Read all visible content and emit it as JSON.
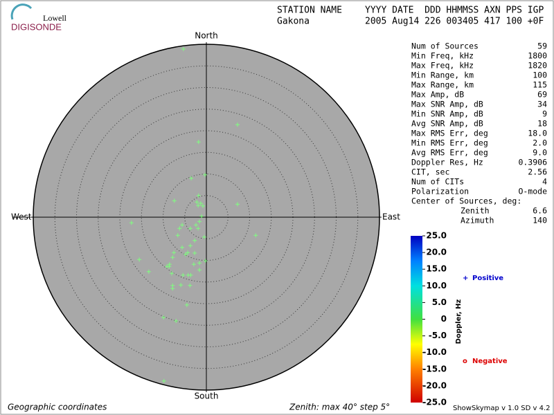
{
  "logo": {
    "line1": "Lowell",
    "line2": "DIGISONDE"
  },
  "header": {
    "row1_left": "STATION NAME",
    "row1_right": "YYYY DATE  DDD HHMMSS AXN PPS IGP",
    "row2_left": "Gakona",
    "row2_right": "2005 Aug14 226 003405 417 100 +0F"
  },
  "info": [
    [
      "Num of Sources",
      "59"
    ],
    [
      "Min Freq, kHz",
      "1800"
    ],
    [
      "Max Freq, kHz",
      "1820"
    ],
    [
      "Min Range, km",
      "100"
    ],
    [
      "Max Range, km",
      "115"
    ],
    [
      "Max Amp, dB",
      "69"
    ],
    [
      "Max SNR Amp, dB",
      "34"
    ],
    [
      "Min SNR Amp, dB",
      "9"
    ],
    [
      "Avg SNR Amp, dB",
      "18"
    ],
    [
      "Max RMS Err, deg",
      "18.0"
    ],
    [
      "Min RMS Err, deg",
      "2.0"
    ],
    [
      "Avg RMS Err, deg",
      "9.0"
    ],
    [
      "Doppler Res, Hz",
      "0.3906"
    ],
    [
      "CIT, sec",
      "2.56"
    ],
    [
      "Num of CITs",
      "4"
    ],
    [
      "Polarization",
      "O-mode"
    ],
    [
      "Center of Sources, deg:"
    ],
    [
      "Zenith",
      "6.6"
    ],
    [
      "Azimuth",
      "140"
    ]
  ],
  "footer": {
    "left": "Geographic coordinates",
    "center": "Zenith: max 40°  step 5°",
    "right": "ShowSkymap v 1.0  SD v 4.2"
  },
  "chart_data": {
    "type": "skymap",
    "directions": {
      "north": "North",
      "south": "South",
      "east": "East",
      "west": "West"
    },
    "xlim": [
      -40,
      40
    ],
    "ylim": [
      -40,
      40
    ],
    "rings": [
      5,
      10,
      15,
      20,
      25,
      30,
      35
    ],
    "series": [
      {
        "name": "Positive",
        "color": "#7fff7f",
        "marker": "+",
        "x": [
          -5.3,
          7.2,
          -1.8,
          -0.3,
          -3.5,
          -1.8,
          -7.4,
          -2.2,
          -1.3,
          -1.9,
          -0.8,
          7.2,
          -1.1,
          -17.3,
          -1.6,
          -5.6,
          -2.4,
          -6.2,
          -3.7,
          -1.9,
          -6.6,
          -0.5,
          11.4,
          -2.7,
          -5.6,
          -3.7,
          -0.2,
          -7.5,
          -4.3,
          -2.7,
          -7.8,
          -15.5,
          -8.5,
          -4.8,
          -9.1,
          -2.9,
          -1.6,
          -13.3,
          -8.0,
          -5.4,
          -4.2,
          -3.6,
          -1.6,
          -7.8,
          -5.9,
          -7.8,
          -3.8,
          -8.6,
          -4.5,
          -9.9,
          -7.0,
          -9.8
        ],
        "y": [
          38.9,
          21.4,
          17.4,
          9.8,
          9.0,
          5.0,
          3.8,
          3.5,
          3.2,
          2.7,
          2.6,
          3.0,
          0.2,
          -1.3,
          -1.0,
          -1.8,
          -1.8,
          -2.6,
          -2.6,
          -2.6,
          -4.2,
          -4.6,
          -4.2,
          -5.4,
          -7.0,
          -6.6,
          -10.1,
          -8.2,
          -8.2,
          -8.3,
          -9.3,
          -9.8,
          -10.9,
          -8.6,
          -11.4,
          -10.9,
          -12.2,
          -12.6,
          -13.0,
          -13.4,
          -13.4,
          -13.4,
          -10.6,
          -15.8,
          -15.7,
          -16.5,
          -15.8,
          -11.4,
          -20.3,
          -23.2,
          -24.0,
          -37.9
        ]
      }
    ],
    "colorbar": {
      "label": "Doppler, Hz",
      "lim": [
        -25,
        25
      ],
      "ticks": [
        {
          "value": 25,
          "label": "25.0"
        },
        {
          "value": 20,
          "label": "20.0"
        },
        {
          "value": 15,
          "label": "15.0"
        },
        {
          "value": 10,
          "label": "10.0"
        },
        {
          "value": 5,
          "label": "5.0"
        },
        0,
        {
          "value": -5,
          "label": "-5.0"
        },
        {
          "value": -10,
          "label": "-10.0"
        },
        {
          "value": -15,
          "label": "-15.0"
        },
        {
          "value": -20,
          "label": "-20.0"
        },
        {
          "value": -25,
          "label": "-25.0"
        }
      ]
    },
    "legend": [
      {
        "symbol": "+",
        "label": "Positive",
        "color": "#0000cc"
      },
      {
        "symbol": "o",
        "label": "Negative",
        "color": "#dd0000"
      }
    ]
  }
}
